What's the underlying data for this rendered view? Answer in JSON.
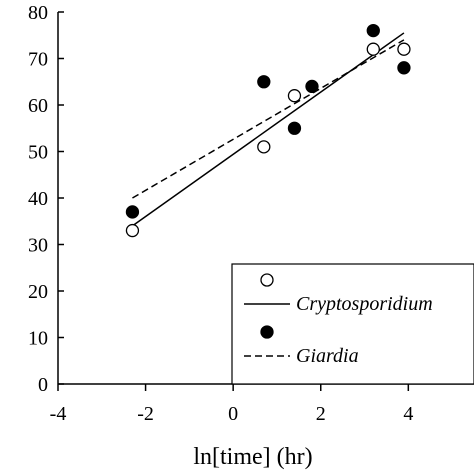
{
  "chart_data": {
    "type": "scatter",
    "xlabel": "ln[time] (hr)",
    "ylabel": "",
    "xlim": [
      -4,
      5.5
    ],
    "ylim": [
      0,
      80
    ],
    "xticks": [
      "-4",
      "-2",
      "0",
      "2",
      "4"
    ],
    "yticks": [
      "0",
      "10",
      "20",
      "30",
      "40",
      "50",
      "60",
      "70",
      "80"
    ],
    "grid": false,
    "legend_position": "bottom-right",
    "series": [
      {
        "name": "Cryptosporidium",
        "marker": "open-circle",
        "line_style": "solid",
        "points": [
          {
            "x": -2.3,
            "y": 33
          },
          {
            "x": 0.7,
            "y": 51
          },
          {
            "x": 1.4,
            "y": 62
          },
          {
            "x": 3.2,
            "y": 72
          },
          {
            "x": 3.9,
            "y": 72
          }
        ],
        "fit_line": [
          {
            "x": -2.3,
            "y": 34
          },
          {
            "x": 3.9,
            "y": 75.5
          }
        ]
      },
      {
        "name": "Giardia",
        "marker": "filled-circle",
        "line_style": "dashed",
        "points": [
          {
            "x": -2.3,
            "y": 37
          },
          {
            "x": 0.7,
            "y": 65
          },
          {
            "x": 1.4,
            "y": 55
          },
          {
            "x": 1.8,
            "y": 64
          },
          {
            "x": 3.2,
            "y": 76
          },
          {
            "x": 3.9,
            "y": 68
          }
        ],
        "fit_line": [
          {
            "x": -2.3,
            "y": 40
          },
          {
            "x": 3.9,
            "y": 74
          }
        ]
      }
    ]
  }
}
